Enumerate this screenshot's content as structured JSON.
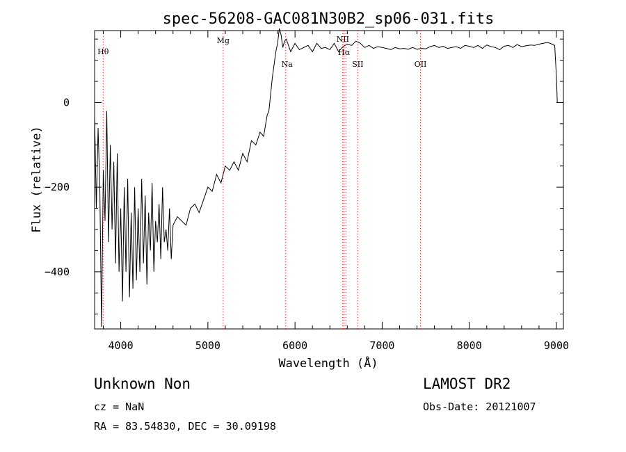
{
  "chart_data": {
    "type": "line",
    "title": "spec-56208-GAC081N30B2_sp06-031.fits",
    "xlabel": "Wavelength (Å)",
    "ylabel": "Flux (relative)",
    "xlim": [
      3700,
      9080
    ],
    "ylim": [
      -535,
      170
    ],
    "x_ticks": [
      4000,
      5000,
      6000,
      7000,
      8000,
      9000
    ],
    "x_tick_labels": [
      "4000",
      "5000",
      "6000",
      "7000",
      "8000",
      "9000"
    ],
    "y_ticks": [
      0,
      -200,
      -400
    ],
    "y_tick_labels": [
      "0",
      "-200",
      "-400"
    ],
    "grid": false,
    "series": [
      {
        "x": [
          3700,
          3720,
          3740,
          3760,
          3780,
          3800,
          3820,
          3840,
          3860,
          3880,
          3900,
          3920,
          3940,
          3960,
          3980,
          4000,
          4020,
          4040,
          4060,
          4080,
          4100,
          4120,
          4140,
          4160,
          4180,
          4200,
          4220,
          4240,
          4260,
          4280,
          4300,
          4320,
          4340,
          4360,
          4380,
          4400,
          4420,
          4440,
          4460,
          4480,
          4500,
          4520,
          4540,
          4560,
          4580,
          4600,
          4650,
          4700,
          4750,
          4800,
          4850,
          4900,
          4950,
          5000,
          5050,
          5100,
          5150,
          5200,
          5250,
          5300,
          5350,
          5400,
          5450,
          5500,
          5550,
          5600,
          5640,
          5680,
          5700,
          5720,
          5740,
          5760,
          5780,
          5800,
          5820,
          5840,
          5860,
          5880,
          5900,
          5950,
          6000,
          6050,
          6100,
          6150,
          6200,
          6250,
          6300,
          6350,
          6400,
          6450,
          6500,
          6550,
          6600,
          6650,
          6700,
          6750,
          6800,
          6850,
          6900,
          6950,
          7000,
          7050,
          7100,
          7150,
          7200,
          7250,
          7300,
          7350,
          7400,
          7450,
          7500,
          7550,
          7600,
          7650,
          7700,
          7750,
          7800,
          7850,
          7900,
          7950,
          8000,
          8050,
          8100,
          8150,
          8200,
          8250,
          8300,
          8350,
          8400,
          8450,
          8500,
          8550,
          8600,
          8650,
          8700,
          8750,
          8800,
          8850,
          8900,
          8950,
          8980,
          9000,
          9010
        ],
        "y": [
          -30,
          -250,
          -60,
          -200,
          -530,
          -160,
          -280,
          -20,
          -330,
          -100,
          -300,
          -140,
          -380,
          -120,
          -400,
          -250,
          -470,
          -200,
          -400,
          -180,
          -460,
          -260,
          -440,
          -200,
          -420,
          -250,
          -400,
          -180,
          -380,
          -220,
          -430,
          -260,
          -350,
          -190,
          -400,
          -280,
          -330,
          -240,
          -370,
          -200,
          -330,
          -300,
          -350,
          -250,
          -370,
          -290,
          -270,
          -280,
          -290,
          -250,
          -240,
          -260,
          -230,
          -200,
          -210,
          -170,
          -190,
          -150,
          -160,
          -140,
          -160,
          -120,
          -140,
          -90,
          -100,
          -70,
          -80,
          -30,
          -20,
          20,
          60,
          90,
          120,
          140,
          175,
          160,
          130,
          145,
          150,
          120,
          140,
          125,
          130,
          135,
          120,
          140,
          128,
          130,
          125,
          140,
          120,
          132,
          138,
          135,
          145,
          140,
          130,
          135,
          128,
          132,
          130,
          128,
          125,
          130,
          127,
          128,
          126,
          130,
          126,
          128,
          127,
          132,
          135,
          130,
          133,
          128,
          130,
          132,
          128,
          135,
          133,
          130,
          135,
          128,
          136,
          132,
          130,
          125,
          133,
          135,
          130,
          137,
          132,
          134,
          136,
          135,
          138,
          140,
          142,
          138,
          135,
          60,
          0
        ]
      }
    ],
    "lines": [
      {
        "label": "Hθ",
        "x": 3798
      },
      {
        "label": "Mg",
        "x": 5175
      },
      {
        "label": "Na",
        "x": 5893
      },
      {
        "label": "NII",
        "x": 6548
      },
      {
        "label": "Hα",
        "x": 6563
      },
      {
        "label": "NII",
        "x": 6584
      },
      {
        "label": "SII",
        "x": 6720
      },
      {
        "label": "OII",
        "x": 7440
      }
    ],
    "line_color": "#000000",
    "marker_line_color": "#d01010"
  },
  "footer": {
    "object_class": "Unknown    Non",
    "cz": "cz = NaN",
    "coords": "RA =  83.54830, DEC =  30.09198",
    "survey": "LAMOST DR2",
    "obs_date": "Obs-Date: 20121007"
  }
}
